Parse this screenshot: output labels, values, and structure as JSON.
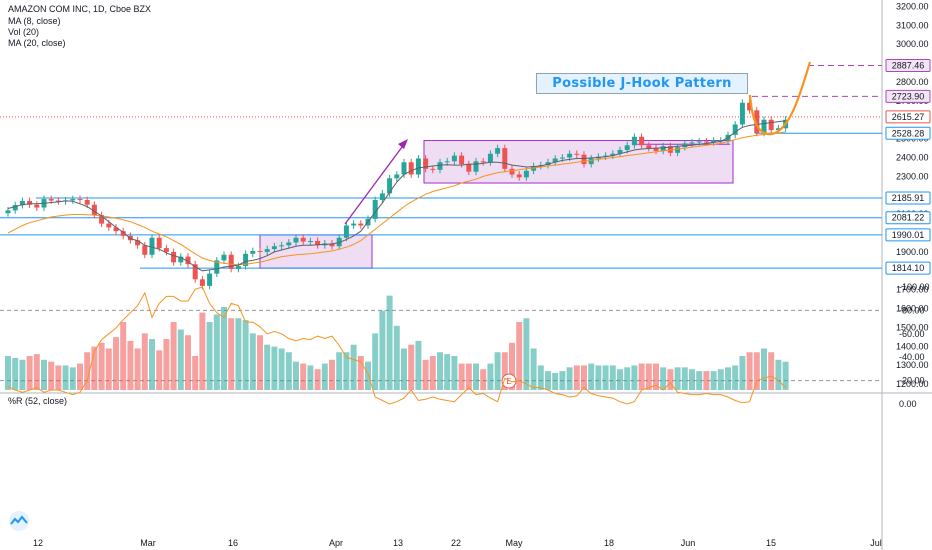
{
  "header": {
    "symbol": "AMAZON COM INC, 1D, Cboe BZX",
    "ma8": "MA (8, close)",
    "vol": "Vol (20)",
    "ma20": "MA (20, close)"
  },
  "wr_label": "%R (52, close)",
  "annotation": "Possible J-Hook Pattern",
  "earnings_marker": "E",
  "colors": {
    "up": "#26a69a",
    "down": "#ef5350",
    "ma8": "#5d606b",
    "ma20": "#f7931e",
    "box_fill": "#e9d2f0",
    "box_stroke": "#a22ecb",
    "hline": "#2196f3",
    "arrow": "#9c27b0",
    "jhook": "#f7931e",
    "wr": "#f7931e",
    "wr_band": "#f3e5f5"
  },
  "chart_data": {
    "type": "candlestick",
    "title": "AMAZON COM INC, 1D, Cboe BZX",
    "x_ticks": [
      "12",
      "Mar",
      "16",
      "Apr",
      "13",
      "22",
      "May",
      "18",
      "Jun",
      "15",
      "Jul"
    ],
    "price_axis": {
      "ticks": [
        "3200.00",
        "3100.00",
        "3000.00",
        "2900.00",
        "2800.00",
        "2700.00",
        "2600.00",
        "2500.00",
        "2400.00",
        "2300.00",
        "2200.00",
        "2100.00",
        "2000.00",
        "1900.00",
        "1800.00",
        "1700.00",
        "1600.00",
        "1500.00",
        "1400.00",
        "1300.00",
        "1200.00"
      ],
      "range": [
        1150,
        3250
      ]
    },
    "price_labels": [
      {
        "value": "2887.46",
        "kind": "target"
      },
      {
        "value": "2723.90",
        "kind": "target"
      },
      {
        "value": "2615.27",
        "kind": "last"
      },
      {
        "value": "2528.28",
        "kind": "level"
      },
      {
        "value": "2185.91",
        "kind": "level"
      },
      {
        "value": "2081.22",
        "kind": "level"
      },
      {
        "value": "1990.01",
        "kind": "level"
      },
      {
        "value": "1814.10",
        "kind": "level"
      }
    ],
    "close": [
      2120,
      2148,
      2170,
      2150,
      2135,
      2180,
      2172,
      2168,
      2173,
      2180,
      2175,
      2150,
      2095,
      2050,
      2030,
      2010,
      1985,
      1962,
      1935,
      1885,
      1975,
      1920,
      1900,
      1845,
      1875,
      1835,
      1755,
      1720,
      1785,
      1855,
      1885,
      1810,
      1825,
      1890,
      1905,
      1900,
      1915,
      1930,
      1935,
      1950,
      1975,
      1955,
      1958,
      1935,
      1945,
      1930,
      1975,
      2040,
      2050,
      2040,
      2075,
      2175,
      2210,
      2290,
      2310,
      2375,
      2310,
      2395,
      2340,
      2335,
      2375,
      2380,
      2410,
      2365,
      2325,
      2380,
      2375,
      2420,
      2450,
      2340,
      2310,
      2295,
      2330,
      2355,
      2360,
      2375,
      2395,
      2400,
      2420,
      2415,
      2365,
      2395,
      2405,
      2410,
      2420,
      2440,
      2465,
      2510,
      2465,
      2450,
      2435,
      2460,
      2425,
      2455,
      2475,
      2480,
      2485,
      2480,
      2490,
      2490,
      2520,
      2575,
      2690,
      2650,
      2530,
      2600,
      2545,
      2555,
      2600
    ],
    "ma8": [
      2130,
      2140,
      2150,
      2155,
      2155,
      2158,
      2162,
      2165,
      2170,
      2168,
      2155,
      2140,
      2115,
      2090,
      2060,
      2030,
      2005,
      1970,
      1960,
      1935,
      1925,
      1915,
      1895,
      1880,
      1870,
      1850,
      1820,
      1800,
      1805,
      1810,
      1820,
      1825,
      1830,
      1850,
      1855,
      1865,
      1880,
      1900,
      1910,
      1920,
      1930,
      1935,
      1935,
      1938,
      1940,
      1942,
      1950,
      1965,
      1985,
      2010,
      2060,
      2110,
      2160,
      2215,
      2270,
      2310,
      2330,
      2345,
      2350,
      2355,
      2360,
      2362,
      2360,
      2360,
      2365,
      2365,
      2370,
      2375,
      2375,
      2370,
      2360,
      2355,
      2350,
      2352,
      2355,
      2365,
      2375,
      2385,
      2390,
      2395,
      2395,
      2398,
      2400,
      2405,
      2410,
      2420,
      2430,
      2440,
      2445,
      2448,
      2450,
      2452,
      2455,
      2460,
      2462,
      2465,
      2470,
      2475,
      2480,
      2485,
      2505,
      2535,
      2560,
      2570,
      2575,
      2580,
      2585,
      2590,
      2595
    ],
    "ma20": [
      2000,
      2020,
      2040,
      2055,
      2065,
      2075,
      2085,
      2090,
      2095,
      2098,
      2098,
      2097,
      2095,
      2090,
      2085,
      2078,
      2070,
      2060,
      2045,
      2030,
      2010,
      1995,
      1980,
      1960,
      1940,
      1915,
      1890,
      1868,
      1855,
      1845,
      1840,
      1835,
      1832,
      1835,
      1840,
      1845,
      1855,
      1865,
      1875,
      1880,
      1885,
      1888,
      1890,
      1895,
      1900,
      1905,
      1915,
      1925,
      1940,
      1960,
      1990,
      2020,
      2050,
      2080,
      2110,
      2140,
      2165,
      2185,
      2205,
      2220,
      2230,
      2240,
      2250,
      2265,
      2275,
      2285,
      2300,
      2310,
      2320,
      2325,
      2330,
      2335,
      2340,
      2345,
      2350,
      2355,
      2360,
      2365,
      2370,
      2375,
      2380,
      2385,
      2390,
      2395,
      2400,
      2405,
      2410,
      2415,
      2420,
      2425,
      2430,
      2435,
      2440,
      2445,
      2450,
      2455,
      2460,
      2465,
      2470,
      2475,
      2485,
      2495,
      2505,
      2512,
      2518,
      2522,
      2526,
      2530,
      2535
    ],
    "volume": [
      1380,
      1370,
      1360,
      1380,
      1390,
      1360,
      1350,
      1330,
      1330,
      1320,
      1340,
      1400,
      1430,
      1450,
      1420,
      1480,
      1560,
      1460,
      1420,
      1500,
      1470,
      1410,
      1470,
      1560,
      1520,
      1490,
      1380,
      1610,
      1560,
      1600,
      1640,
      1580,
      1580,
      1570,
      1500,
      1490,
      1440,
      1430,
      1420,
      1400,
      1350,
      1340,
      1330,
      1310,
      1340,
      1360,
      1400,
      1400,
      1440,
      1380,
      1350,
      1500,
      1620,
      1700,
      1540,
      1420,
      1440,
      1460,
      1360,
      1380,
      1400,
      1390,
      1380,
      1340,
      1340,
      1340,
      1310,
      1340,
      1400,
      1400,
      1450,
      1560,
      1580,
      1420,
      1330,
      1300,
      1290,
      1300,
      1320,
      1330,
      1330,
      1340,
      1330,
      1330,
      1330,
      1310,
      1320,
      1330,
      1340,
      1340,
      1340,
      1320,
      1310,
      1320,
      1320,
      1310,
      1300,
      1300,
      1300,
      1310,
      1320,
      1330,
      1380,
      1400,
      1400,
      1420,
      1400,
      1360,
      1350
    ],
    "williams_r": [
      -15,
      -12,
      -10,
      -12,
      -14,
      -10,
      -12,
      -12,
      -10,
      -8,
      -10,
      -20,
      -45,
      -55,
      -60,
      -65,
      -72,
      -78,
      -84,
      -95,
      -74,
      -86,
      -92,
      -92,
      -88,
      -88,
      -98,
      -100,
      -86,
      -78,
      -74,
      -86,
      -84,
      -70,
      -70,
      -66,
      -60,
      -62,
      -60,
      -56,
      -54,
      -56,
      -55,
      -58,
      -56,
      -58,
      -50,
      -40,
      -38,
      -36,
      -26,
      -6,
      -3,
      0,
      -2,
      -5,
      -12,
      -3,
      -4,
      -6,
      -4,
      -3,
      -2,
      -8,
      -14,
      -8,
      -9,
      -5,
      -2,
      -22,
      -19,
      -20,
      -17,
      -14,
      -14,
      -12,
      -9,
      -8,
      -6,
      -7,
      -14,
      -9,
      -7,
      -6,
      -5,
      -2,
      0,
      -2,
      -12,
      -14,
      -16,
      -12,
      -18,
      -10,
      -9,
      -8,
      -8,
      -9,
      -8,
      -8,
      -6,
      -3,
      -1,
      -2,
      -20,
      -22,
      -24,
      -20,
      -14
    ],
    "wr_axis": {
      "ticks": [
        "0.00",
        "-20.00",
        "-40.00",
        "-60.00",
        "-80.00",
        "-100.00"
      ],
      "range": [
        -110,
        10
      ],
      "band": [
        -80,
        -20
      ]
    }
  }
}
